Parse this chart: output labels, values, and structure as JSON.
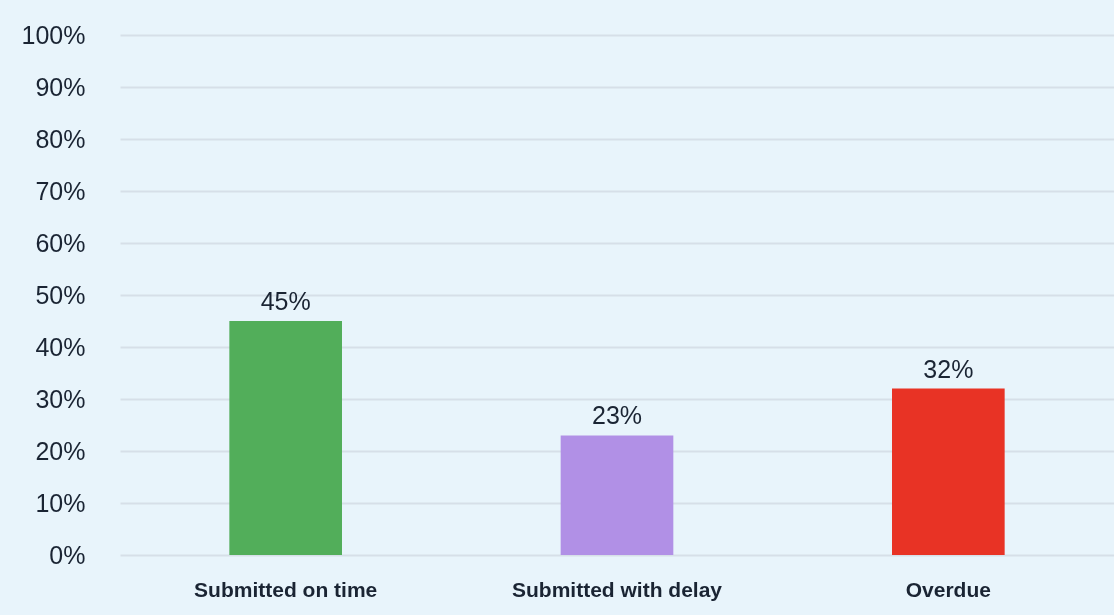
{
  "chart_data": {
    "type": "bar",
    "categories": [
      "Submitted on time",
      "Submitted with delay",
      "Overdue"
    ],
    "values": [
      45,
      23,
      32
    ],
    "colors": [
      "#52ae5a",
      "#b190e6",
      "#e83325"
    ],
    "value_labels": [
      "45%",
      "23%",
      "32%"
    ],
    "ylim": [
      0,
      100
    ],
    "yticks": [
      {
        "value": 0,
        "label": "0%"
      },
      {
        "value": 10,
        "label": "10%"
      },
      {
        "value": 20,
        "label": "20%"
      },
      {
        "value": 30,
        "label": "30%"
      },
      {
        "value": 40,
        "label": "40%"
      },
      {
        "value": 50,
        "label": "50%"
      },
      {
        "value": 60,
        "label": "60%"
      },
      {
        "value": 70,
        "label": "70%"
      },
      {
        "value": 80,
        "label": "80%"
      },
      {
        "value": 90,
        "label": "90%"
      },
      {
        "value": 100,
        "label": "100%"
      }
    ],
    "grid": "y"
  }
}
